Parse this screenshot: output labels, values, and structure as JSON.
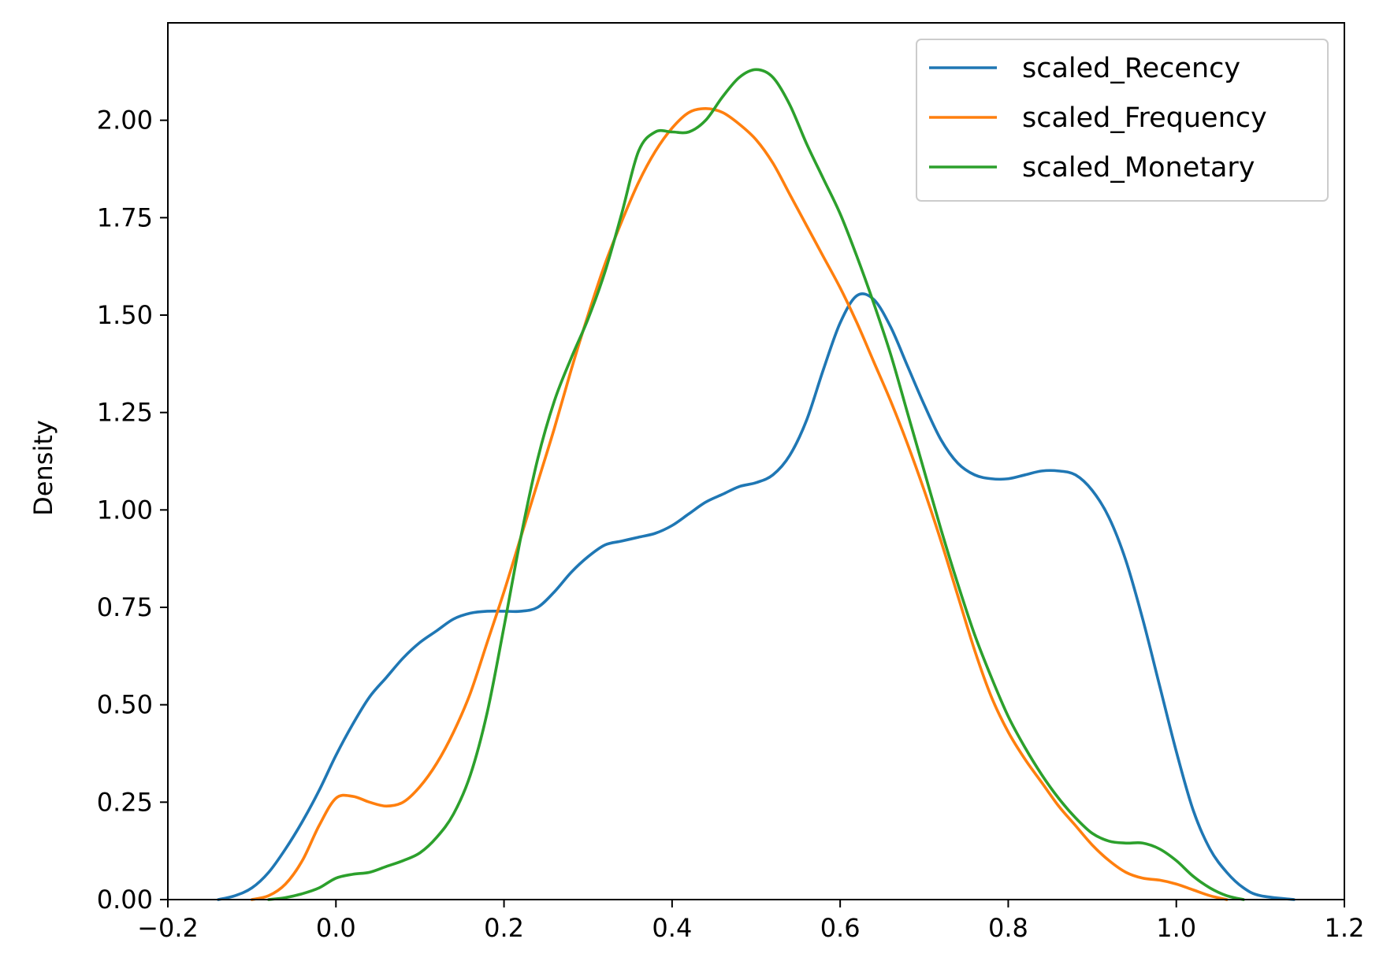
{
  "chart_data": {
    "type": "line",
    "title": "",
    "xlabel": "",
    "ylabel": "Density",
    "xlim": [
      -0.2,
      1.2
    ],
    "ylim": [
      0.0,
      2.25
    ],
    "x_ticks": [
      -0.2,
      0.0,
      0.2,
      0.4,
      0.6,
      0.8,
      1.0,
      1.2
    ],
    "x_tick_labels": [
      "−0.2",
      "0.0",
      "0.2",
      "0.4",
      "0.6",
      "0.8",
      "1.0",
      "1.2"
    ],
    "y_ticks": [
      0.0,
      0.25,
      0.5,
      0.75,
      1.0,
      1.25,
      1.5,
      1.75,
      2.0
    ],
    "y_tick_labels": [
      "0.00",
      "0.25",
      "0.50",
      "0.75",
      "1.00",
      "1.25",
      "1.50",
      "1.75",
      "2.00"
    ],
    "grid": false,
    "legend_position": "top-right",
    "series": [
      {
        "name": "scaled_Recency",
        "color": "#1f77b4",
        "points": [
          [
            -0.14,
            0.0
          ],
          [
            -0.12,
            0.01
          ],
          [
            -0.1,
            0.03
          ],
          [
            -0.08,
            0.07
          ],
          [
            -0.06,
            0.13
          ],
          [
            -0.04,
            0.2
          ],
          [
            -0.02,
            0.28
          ],
          [
            0.0,
            0.37
          ],
          [
            0.02,
            0.45
          ],
          [
            0.04,
            0.52
          ],
          [
            0.06,
            0.57
          ],
          [
            0.08,
            0.62
          ],
          [
            0.1,
            0.66
          ],
          [
            0.12,
            0.69
          ],
          [
            0.14,
            0.72
          ],
          [
            0.16,
            0.735
          ],
          [
            0.18,
            0.74
          ],
          [
            0.2,
            0.74
          ],
          [
            0.22,
            0.74
          ],
          [
            0.24,
            0.75
          ],
          [
            0.26,
            0.79
          ],
          [
            0.28,
            0.84
          ],
          [
            0.3,
            0.88
          ],
          [
            0.32,
            0.91
          ],
          [
            0.34,
            0.92
          ],
          [
            0.36,
            0.93
          ],
          [
            0.38,
            0.94
          ],
          [
            0.4,
            0.96
          ],
          [
            0.42,
            0.99
          ],
          [
            0.44,
            1.02
          ],
          [
            0.46,
            1.04
          ],
          [
            0.48,
            1.06
          ],
          [
            0.5,
            1.07
          ],
          [
            0.52,
            1.09
          ],
          [
            0.54,
            1.14
          ],
          [
            0.56,
            1.23
          ],
          [
            0.58,
            1.36
          ],
          [
            0.6,
            1.48
          ],
          [
            0.62,
            1.55
          ],
          [
            0.64,
            1.54
          ],
          [
            0.66,
            1.47
          ],
          [
            0.68,
            1.37
          ],
          [
            0.7,
            1.27
          ],
          [
            0.72,
            1.18
          ],
          [
            0.74,
            1.12
          ],
          [
            0.76,
            1.09
          ],
          [
            0.78,
            1.08
          ],
          [
            0.8,
            1.08
          ],
          [
            0.82,
            1.09
          ],
          [
            0.84,
            1.1
          ],
          [
            0.86,
            1.1
          ],
          [
            0.88,
            1.09
          ],
          [
            0.9,
            1.05
          ],
          [
            0.92,
            0.98
          ],
          [
            0.94,
            0.87
          ],
          [
            0.96,
            0.72
          ],
          [
            0.98,
            0.55
          ],
          [
            1.0,
            0.38
          ],
          [
            1.02,
            0.23
          ],
          [
            1.04,
            0.13
          ],
          [
            1.06,
            0.07
          ],
          [
            1.08,
            0.03
          ],
          [
            1.1,
            0.01
          ],
          [
            1.14,
            0.0
          ]
        ]
      },
      {
        "name": "scaled_Frequency",
        "color": "#ff7f0e",
        "points": [
          [
            -0.1,
            0.0
          ],
          [
            -0.08,
            0.01
          ],
          [
            -0.06,
            0.04
          ],
          [
            -0.04,
            0.1
          ],
          [
            -0.02,
            0.19
          ],
          [
            0.0,
            0.26
          ],
          [
            0.02,
            0.265
          ],
          [
            0.04,
            0.25
          ],
          [
            0.06,
            0.24
          ],
          [
            0.08,
            0.25
          ],
          [
            0.1,
            0.29
          ],
          [
            0.12,
            0.35
          ],
          [
            0.14,
            0.43
          ],
          [
            0.16,
            0.53
          ],
          [
            0.18,
            0.66
          ],
          [
            0.2,
            0.79
          ],
          [
            0.22,
            0.93
          ],
          [
            0.24,
            1.07
          ],
          [
            0.26,
            1.21
          ],
          [
            0.28,
            1.36
          ],
          [
            0.3,
            1.5
          ],
          [
            0.32,
            1.63
          ],
          [
            0.34,
            1.74
          ],
          [
            0.36,
            1.84
          ],
          [
            0.38,
            1.92
          ],
          [
            0.4,
            1.98
          ],
          [
            0.42,
            2.02
          ],
          [
            0.44,
            2.03
          ],
          [
            0.46,
            2.02
          ],
          [
            0.48,
            1.99
          ],
          [
            0.5,
            1.95
          ],
          [
            0.52,
            1.89
          ],
          [
            0.54,
            1.81
          ],
          [
            0.56,
            1.73
          ],
          [
            0.58,
            1.65
          ],
          [
            0.6,
            1.57
          ],
          [
            0.62,
            1.48
          ],
          [
            0.64,
            1.38
          ],
          [
            0.66,
            1.28
          ],
          [
            0.68,
            1.17
          ],
          [
            0.7,
            1.05
          ],
          [
            0.72,
            0.92
          ],
          [
            0.74,
            0.78
          ],
          [
            0.76,
            0.64
          ],
          [
            0.78,
            0.52
          ],
          [
            0.8,
            0.43
          ],
          [
            0.82,
            0.36
          ],
          [
            0.84,
            0.3
          ],
          [
            0.86,
            0.24
          ],
          [
            0.88,
            0.19
          ],
          [
            0.9,
            0.14
          ],
          [
            0.92,
            0.1
          ],
          [
            0.94,
            0.07
          ],
          [
            0.96,
            0.055
          ],
          [
            0.98,
            0.05
          ],
          [
            1.0,
            0.04
          ],
          [
            1.02,
            0.025
          ],
          [
            1.04,
            0.01
          ],
          [
            1.06,
            0.0
          ]
        ]
      },
      {
        "name": "scaled_Monetary",
        "color": "#2ca02c",
        "points": [
          [
            -0.08,
            0.0
          ],
          [
            -0.06,
            0.005
          ],
          [
            -0.04,
            0.015
          ],
          [
            -0.02,
            0.03
          ],
          [
            0.0,
            0.055
          ],
          [
            0.02,
            0.065
          ],
          [
            0.04,
            0.07
          ],
          [
            0.06,
            0.085
          ],
          [
            0.08,
            0.1
          ],
          [
            0.1,
            0.12
          ],
          [
            0.12,
            0.16
          ],
          [
            0.14,
            0.22
          ],
          [
            0.16,
            0.32
          ],
          [
            0.18,
            0.48
          ],
          [
            0.2,
            0.7
          ],
          [
            0.22,
            0.93
          ],
          [
            0.24,
            1.13
          ],
          [
            0.26,
            1.28
          ],
          [
            0.28,
            1.39
          ],
          [
            0.3,
            1.49
          ],
          [
            0.32,
            1.61
          ],
          [
            0.34,
            1.76
          ],
          [
            0.36,
            1.92
          ],
          [
            0.38,
            1.97
          ],
          [
            0.4,
            1.97
          ],
          [
            0.42,
            1.97
          ],
          [
            0.44,
            2.0
          ],
          [
            0.46,
            2.06
          ],
          [
            0.48,
            2.11
          ],
          [
            0.5,
            2.13
          ],
          [
            0.52,
            2.11
          ],
          [
            0.54,
            2.04
          ],
          [
            0.56,
            1.94
          ],
          [
            0.58,
            1.85
          ],
          [
            0.6,
            1.76
          ],
          [
            0.62,
            1.65
          ],
          [
            0.64,
            1.53
          ],
          [
            0.66,
            1.4
          ],
          [
            0.68,
            1.25
          ],
          [
            0.7,
            1.1
          ],
          [
            0.72,
            0.95
          ],
          [
            0.74,
            0.81
          ],
          [
            0.76,
            0.68
          ],
          [
            0.78,
            0.57
          ],
          [
            0.8,
            0.47
          ],
          [
            0.82,
            0.39
          ],
          [
            0.84,
            0.32
          ],
          [
            0.86,
            0.26
          ],
          [
            0.88,
            0.21
          ],
          [
            0.9,
            0.17
          ],
          [
            0.92,
            0.15
          ],
          [
            0.94,
            0.145
          ],
          [
            0.96,
            0.145
          ],
          [
            0.98,
            0.13
          ],
          [
            1.0,
            0.1
          ],
          [
            1.02,
            0.06
          ],
          [
            1.04,
            0.03
          ],
          [
            1.06,
            0.01
          ],
          [
            1.08,
            0.0
          ]
        ]
      }
    ]
  }
}
